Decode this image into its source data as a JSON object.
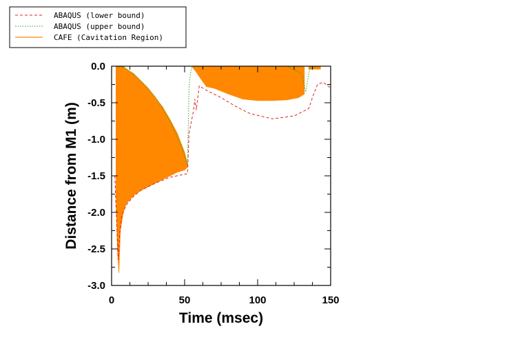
{
  "chart_data": {
    "type": "line",
    "title": "",
    "xlabel": "Time (msec)",
    "ylabel": "Distance from M1 (m)",
    "xlim": [
      0,
      150
    ],
    "ylim": [
      -3.0,
      0.0
    ],
    "xticks": [
      0,
      50,
      100,
      150
    ],
    "yticks": [
      0.0,
      -0.5,
      -1.0,
      -1.5,
      -2.0,
      -2.5,
      -3.0
    ],
    "xtick_labels": [
      "0",
      "50",
      "100",
      "150"
    ],
    "ytick_labels": [
      "0.0",
      "-0.5",
      "-1.0",
      "-1.5",
      "-2.0",
      "-2.5",
      "-3.0"
    ],
    "grid": false,
    "legend_position": "top-left",
    "series": [
      {
        "name": "ABAQUS (lower bound)",
        "style": "dashed",
        "color": "#dd2222",
        "points": [
          [
            2.2,
            -1.5
          ],
          [
            4.5,
            -2.65
          ],
          [
            5.5,
            -2.3
          ],
          [
            7,
            -2.05
          ],
          [
            10,
            -1.9
          ],
          [
            15,
            -1.78
          ],
          [
            20,
            -1.7
          ],
          [
            30,
            -1.6
          ],
          [
            40,
            -1.52
          ],
          [
            52,
            -1.47
          ],
          [
            53,
            -0.92
          ],
          [
            56,
            -0.62
          ],
          [
            57,
            -0.45
          ],
          [
            58,
            -0.6
          ],
          [
            60,
            -0.27
          ],
          [
            65,
            -0.33
          ],
          [
            75,
            -0.43
          ],
          [
            85,
            -0.55
          ],
          [
            95,
            -0.65
          ],
          [
            110,
            -0.72
          ],
          [
            125,
            -0.68
          ],
          [
            135,
            -0.58
          ],
          [
            138,
            -0.4
          ],
          [
            141,
            -0.25
          ],
          [
            145,
            -0.22
          ],
          [
            150,
            -0.3
          ]
        ]
      },
      {
        "name": "ABAQUS (upper bound)",
        "style": "dotted",
        "color": "#22aa22",
        "points": [
          [
            4.5,
            -0.02
          ],
          [
            6,
            0.0
          ],
          [
            10,
            -0.03
          ],
          [
            20,
            -0.2
          ],
          [
            30,
            -0.42
          ],
          [
            40,
            -0.75
          ],
          [
            48,
            -1.1
          ],
          [
            52,
            -1.35
          ],
          [
            53,
            -0.3
          ],
          [
            54,
            -0.1
          ],
          [
            55,
            0.0
          ],
          [
            60,
            0.0
          ],
          [
            100,
            0.0
          ],
          [
            120,
            0.0
          ],
          [
            130,
            -0.1
          ],
          [
            133,
            -0.35
          ],
          [
            135,
            -0.1
          ],
          [
            136,
            -0.03
          ],
          [
            140,
            0.0
          ],
          [
            150,
            0.0
          ]
        ]
      },
      {
        "name": "CAFE (Cavitation Region)",
        "style": "solid",
        "color": "#ff8800",
        "regions": [
          {
            "upper": [
              [
                3,
                0.0
              ],
              [
                8,
                0.0
              ],
              [
                10,
                -0.04
              ],
              [
                15,
                -0.1
              ],
              [
                20,
                -0.2
              ],
              [
                25,
                -0.3
              ],
              [
                30,
                -0.43
              ],
              [
                35,
                -0.56
              ],
              [
                40,
                -0.73
              ],
              [
                45,
                -0.92
              ],
              [
                50,
                -1.18
              ],
              [
                52,
                -1.33
              ]
            ],
            "lower": [
              [
                52,
                -1.38
              ],
              [
                50,
                -1.42
              ],
              [
                45,
                -1.45
              ],
              [
                40,
                -1.5
              ],
              [
                35,
                -1.55
              ],
              [
                30,
                -1.6
              ],
              [
                25,
                -1.65
              ],
              [
                20,
                -1.7
              ],
              [
                15,
                -1.77
              ],
              [
                10,
                -1.88
              ],
              [
                8,
                -2.0
              ],
              [
                6,
                -2.25
              ],
              [
                5,
                -2.83
              ],
              [
                4,
                -2.5
              ],
              [
                3,
                -1.8
              ]
            ]
          },
          {
            "upper": [
              [
                55,
                0.0
              ],
              [
                132,
                0.0
              ]
            ],
            "lower": [
              [
                132,
                -0.38
              ],
              [
                128,
                -0.43
              ],
              [
                120,
                -0.46
              ],
              [
                110,
                -0.47
              ],
              [
                100,
                -0.47
              ],
              [
                90,
                -0.45
              ],
              [
                80,
                -0.38
              ],
              [
                70,
                -0.3
              ],
              [
                65,
                -0.28
              ],
              [
                61,
                -0.17
              ],
              [
                58,
                -0.08
              ],
              [
                56,
                -0.03
              ]
            ]
          },
          {
            "upper": [
              [
                135,
                0.0
              ],
              [
                143,
                0.0
              ]
            ],
            "lower": [
              [
                143,
                -0.04
              ],
              [
                135,
                -0.04
              ]
            ]
          }
        ]
      }
    ]
  }
}
